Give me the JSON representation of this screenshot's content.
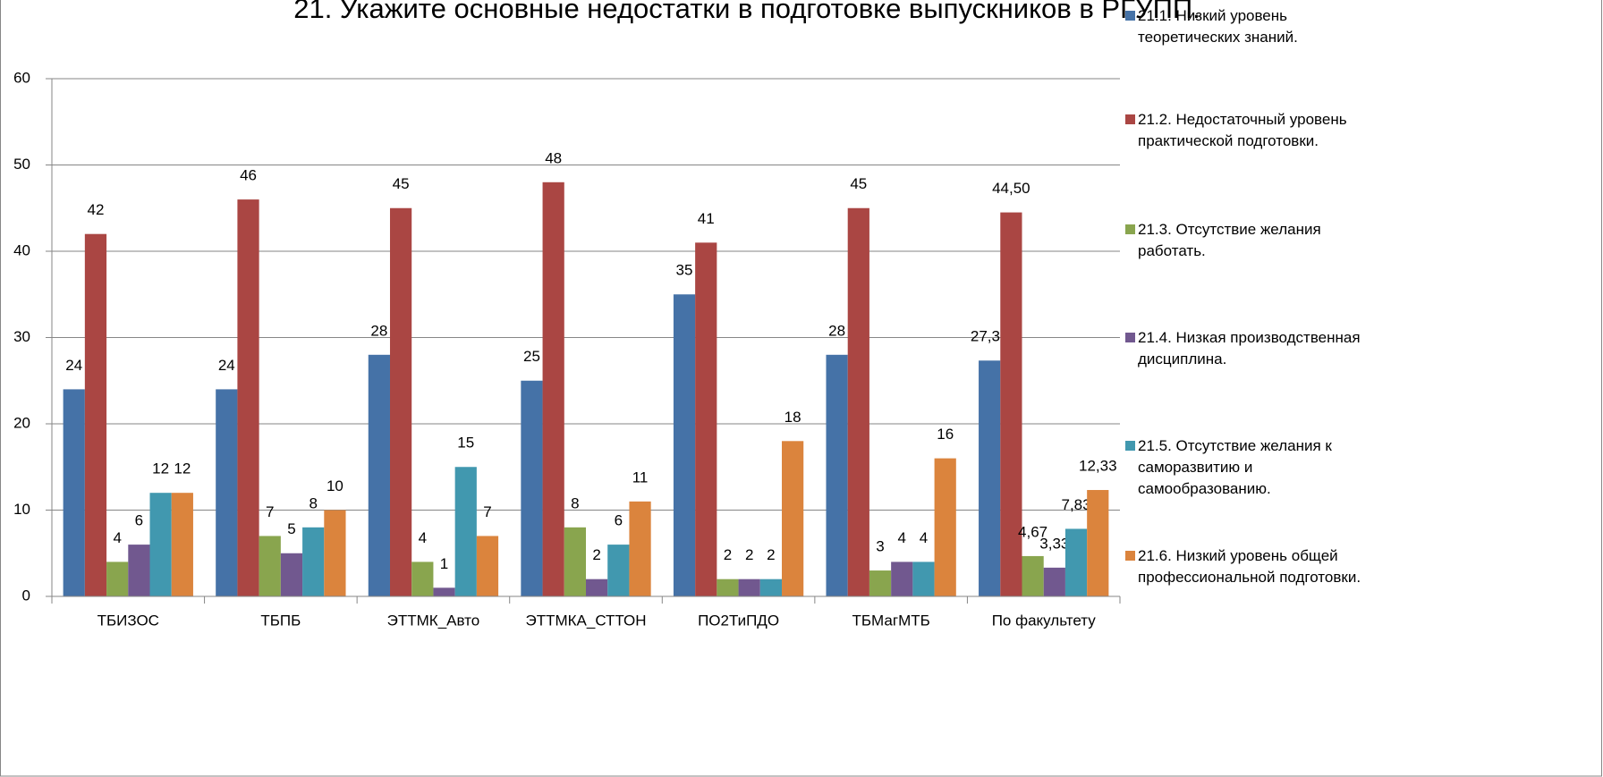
{
  "chart_data": {
    "type": "bar",
    "title": "21. Укажите основные недостатки в подготовке выпускников в РГУПП.",
    "categories": [
      "ТБИЗОС",
      "ТБПБ",
      "ЭТТМК_Авто",
      "ЭТТМКА_СТТОН",
      "ПО2ТиПДО",
      "ТБМагМТБ",
      "По факультету"
    ],
    "series": [
      {
        "name": "21.1. Низкий уровень теоретических знаний.",
        "color": "#4572a7",
        "values": [
          24,
          24,
          28,
          25,
          35,
          28,
          27.33
        ],
        "value_labels": [
          "24",
          "24",
          "28",
          "25",
          "35",
          "28",
          "27,33"
        ]
      },
      {
        "name": "21.2. Недостаточный уровень практической подготовки.",
        "color": "#aa4643",
        "values": [
          42,
          46,
          45,
          48,
          41,
          45,
          44.5
        ],
        "value_labels": [
          "42",
          "46",
          "45",
          "48",
          "41",
          "45",
          "44,50"
        ]
      },
      {
        "name": "21.3. Отсутствие желания работать.",
        "color": "#89a54e",
        "values": [
          4,
          7,
          4,
          8,
          2,
          3,
          4.67
        ],
        "value_labels": [
          "4",
          "7",
          "4",
          "8",
          "2",
          "3",
          "4,67"
        ]
      },
      {
        "name": "21.4. Низкая производственная дисциплина.",
        "color": "#71588f",
        "values": [
          6,
          5,
          1,
          2,
          2,
          4,
          3.33
        ],
        "value_labels": [
          "6",
          "5",
          "1",
          "2",
          "2",
          "4",
          "3,33"
        ]
      },
      {
        "name": "21.5. Отсутствие желания к саморазвитию и самообразованию.",
        "color": "#4198af",
        "values": [
          12,
          8,
          15,
          6,
          2,
          4,
          7.83
        ],
        "value_labels": [
          "12",
          "8",
          "15",
          "6",
          "2",
          "4",
          "7,83"
        ]
      },
      {
        "name": "21.6. Низкий уровень общей профессиональной подготовки.",
        "color": "#db843d",
        "values": [
          12,
          10,
          7,
          11,
          18,
          16,
          12.33
        ],
        "value_labels": [
          "12",
          "10",
          "7",
          "11",
          "18",
          "16",
          "12,33"
        ]
      }
    ],
    "ylim": [
      0,
      60
    ],
    "yticks": [
      0,
      10,
      20,
      30,
      40,
      50,
      60
    ],
    "grid": true,
    "legend": "right"
  }
}
